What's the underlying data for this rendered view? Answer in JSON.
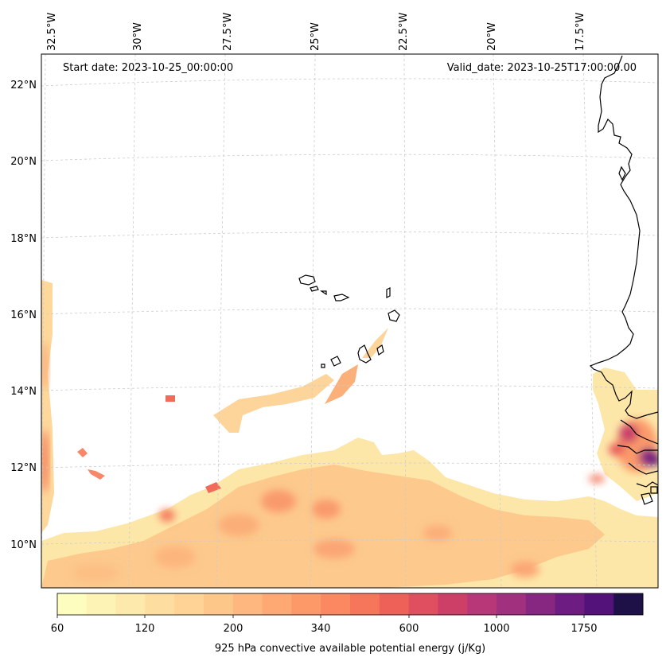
{
  "header": {
    "start_date": "Start date: 2023-10-25_00:00:00",
    "valid_date": "Valid_date: 2023-10-25T17:00:00.00"
  },
  "map": {
    "lon_ticks": [
      "32.5°W",
      "30°W",
      "27.5°W",
      "25°W",
      "22.5°W",
      "20°W",
      "17.5°W"
    ],
    "lat_ticks": [
      "22°N",
      "20°N",
      "18°N",
      "16°N",
      "14°N",
      "12°N",
      "10°N"
    ],
    "extent": {
      "lon_min": -33.0,
      "lon_max": -15.5,
      "lat_min": 8.9,
      "lat_max": 22.8
    },
    "gridlines": true,
    "coastline_color": "#000000",
    "variable": "925 hPa convective available potential energy"
  },
  "colorbar": {
    "title": "925 hPa convective available potential energy (j/Kg)",
    "tick_labels": [
      "60",
      "120",
      "200",
      "340",
      "600",
      "1000",
      "1750"
    ],
    "colormap": "magma_r",
    "levels": 20,
    "colors": [
      "#fcfdbf",
      "#fdf3b5",
      "#fde9ab",
      "#fddea0",
      "#fed395",
      "#fec78a",
      "#feb77e",
      "#fea873",
      "#fd9869",
      "#fb8861",
      "#f6765c",
      "#ed6159",
      "#e04f5f",
      "#ce3f67",
      "#b73779",
      "#a1307e",
      "#872781",
      "#6d1d81",
      "#531279",
      "#1d1147"
    ]
  }
}
